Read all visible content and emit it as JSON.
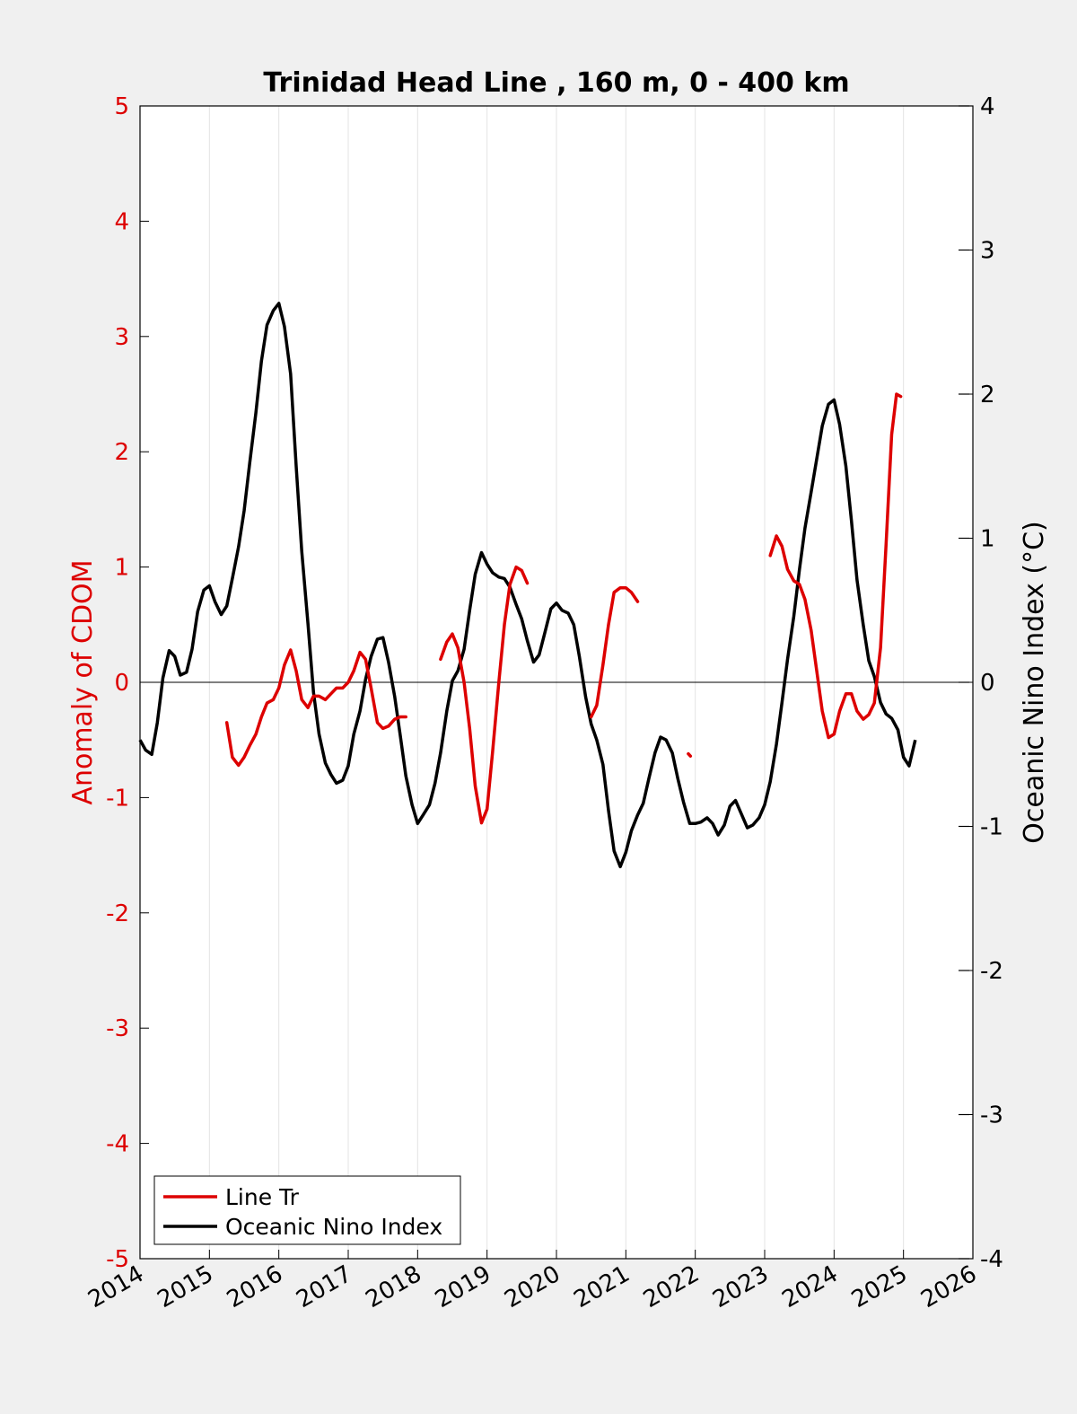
{
  "chart_data": {
    "type": "line",
    "title": "Trinidad Head Line , 160 m, 0 - 400 km",
    "ylabel_left": "Anomaly of CDOM",
    "ylabel_right": "Oceanic Nino Index (°C)",
    "xlabel": "",
    "xlim": [
      2014,
      2026
    ],
    "ylim_left": [
      -5,
      5
    ],
    "ylim_right": [
      -4,
      4
    ],
    "x_ticks": [
      2014,
      2015,
      2016,
      2017,
      2018,
      2019,
      2020,
      2021,
      2022,
      2023,
      2024,
      2025,
      2026
    ],
    "x_tick_labels": [
      "2014",
      "2015",
      "2016",
      "2017",
      "2018",
      "2019",
      "2020",
      "2021",
      "2022",
      "2023",
      "2024",
      "2025",
      "2026"
    ],
    "y_ticks_left": [
      5,
      4,
      3,
      2,
      1,
      0,
      -1,
      -2,
      -3,
      -4,
      -5
    ],
    "y_tick_labels_left": [
      "5",
      "4",
      "3",
      "2",
      "1",
      "0",
      "-1",
      "-2",
      "-3",
      "-4",
      "-5"
    ],
    "y_ticks_right": [
      4,
      3,
      2,
      1,
      0,
      -1,
      -2,
      -3,
      -4
    ],
    "y_tick_labels_right": [
      "4",
      "3",
      "2",
      "1",
      "0",
      "-1",
      "-2",
      "-3",
      "-4"
    ],
    "grid": "vertical",
    "zero_line": true,
    "legend_position": "bottom-left",
    "legend": [
      "Line Tr",
      "Oceanic Nino Index"
    ],
    "colors": {
      "line_tr": "#dd0000",
      "oni": "#000000",
      "left_axis": "#dd0000",
      "right_axis": "#000000",
      "grid": "#e3e3e3",
      "background": "#f0f0f0",
      "plot_bg": "#ffffff"
    },
    "series": [
      {
        "name": "Line Tr",
        "axis": "left",
        "color": "#dd0000",
        "segments": [
          [
            [
              2015.25,
              -0.35
            ],
            [
              2015.33,
              -0.65
            ],
            [
              2015.42,
              -0.72
            ],
            [
              2015.5,
              -0.65
            ],
            [
              2015.58,
              -0.55
            ],
            [
              2015.67,
              -0.45
            ],
            [
              2015.75,
              -0.3
            ],
            [
              2015.83,
              -0.18
            ],
            [
              2015.92,
              -0.15
            ],
            [
              2016.0,
              -0.05
            ],
            [
              2016.08,
              0.15
            ],
            [
              2016.17,
              0.28
            ],
            [
              2016.25,
              0.1
            ],
            [
              2016.33,
              -0.15
            ],
            [
              2016.42,
              -0.22
            ],
            [
              2016.5,
              -0.12
            ],
            [
              2016.58,
              -0.12
            ],
            [
              2016.67,
              -0.15
            ],
            [
              2016.75,
              -0.1
            ],
            [
              2016.83,
              -0.05
            ],
            [
              2016.92,
              -0.05
            ],
            [
              2017.0,
              0.0
            ],
            [
              2017.08,
              0.1
            ],
            [
              2017.17,
              0.26
            ],
            [
              2017.25,
              0.2
            ],
            [
              2017.33,
              -0.05
            ],
            [
              2017.42,
              -0.35
            ],
            [
              2017.5,
              -0.4
            ],
            [
              2017.58,
              -0.38
            ],
            [
              2017.67,
              -0.32
            ],
            [
              2017.75,
              -0.3
            ],
            [
              2017.83,
              -0.3
            ]
          ],
          [
            [
              2018.33,
              0.2
            ],
            [
              2018.42,
              0.35
            ],
            [
              2018.5,
              0.42
            ],
            [
              2018.58,
              0.3
            ],
            [
              2018.67,
              0.0
            ],
            [
              2018.75,
              -0.4
            ],
            [
              2018.83,
              -0.9
            ],
            [
              2018.92,
              -1.22
            ],
            [
              2019.0,
              -1.1
            ],
            [
              2019.08,
              -0.6
            ],
            [
              2019.17,
              0.0
            ],
            [
              2019.25,
              0.5
            ],
            [
              2019.33,
              0.85
            ],
            [
              2019.42,
              1.0
            ],
            [
              2019.5,
              0.97
            ],
            [
              2019.58,
              0.86
            ]
          ],
          [
            [
              2020.5,
              -0.3
            ],
            [
              2020.58,
              -0.2
            ],
            [
              2020.67,
              0.15
            ],
            [
              2020.75,
              0.5
            ],
            [
              2020.83,
              0.78
            ],
            [
              2020.92,
              0.82
            ],
            [
              2021.0,
              0.82
            ],
            [
              2021.08,
              0.78
            ],
            [
              2021.17,
              0.7
            ]
          ],
          [
            [
              2021.9,
              -0.62
            ],
            [
              2021.93,
              -0.64
            ]
          ],
          [
            [
              2023.08,
              1.1
            ],
            [
              2023.17,
              1.27
            ],
            [
              2023.25,
              1.18
            ],
            [
              2023.33,
              0.98
            ],
            [
              2023.42,
              0.88
            ],
            [
              2023.5,
              0.85
            ],
            [
              2023.58,
              0.72
            ],
            [
              2023.67,
              0.45
            ],
            [
              2023.75,
              0.1
            ],
            [
              2023.83,
              -0.25
            ],
            [
              2023.92,
              -0.48
            ],
            [
              2024.0,
              -0.45
            ],
            [
              2024.08,
              -0.25
            ],
            [
              2024.17,
              -0.1
            ],
            [
              2024.25,
              -0.1
            ],
            [
              2024.33,
              -0.25
            ],
            [
              2024.42,
              -0.32
            ],
            [
              2024.5,
              -0.28
            ],
            [
              2024.58,
              -0.18
            ],
            [
              2024.67,
              0.3
            ],
            [
              2024.75,
              1.2
            ],
            [
              2024.83,
              2.15
            ],
            [
              2024.9,
              2.5
            ],
            [
              2024.96,
              2.48
            ]
          ]
        ]
      },
      {
        "name": "Oceanic Nino Index",
        "axis": "right",
        "color": "#000000",
        "points": [
          [
            2014.0,
            -0.4
          ],
          [
            2014.08,
            -0.47
          ],
          [
            2014.17,
            -0.5
          ],
          [
            2014.25,
            -0.28
          ],
          [
            2014.33,
            0.03
          ],
          [
            2014.42,
            0.22
          ],
          [
            2014.5,
            0.18
          ],
          [
            2014.58,
            0.05
          ],
          [
            2014.67,
            0.07
          ],
          [
            2014.75,
            0.23
          ],
          [
            2014.83,
            0.49
          ],
          [
            2014.92,
            0.64
          ],
          [
            2015.0,
            0.67
          ],
          [
            2015.08,
            0.56
          ],
          [
            2015.17,
            0.47
          ],
          [
            2015.25,
            0.53
          ],
          [
            2015.33,
            0.72
          ],
          [
            2015.42,
            0.94
          ],
          [
            2015.5,
            1.19
          ],
          [
            2015.58,
            1.52
          ],
          [
            2015.67,
            1.87
          ],
          [
            2015.75,
            2.23
          ],
          [
            2015.83,
            2.48
          ],
          [
            2015.92,
            2.58
          ],
          [
            2016.0,
            2.63
          ],
          [
            2016.08,
            2.47
          ],
          [
            2016.17,
            2.14
          ],
          [
            2016.25,
            1.5
          ],
          [
            2016.33,
            0.91
          ],
          [
            2016.42,
            0.41
          ],
          [
            2016.5,
            -0.07
          ],
          [
            2016.58,
            -0.36
          ],
          [
            2016.67,
            -0.56
          ],
          [
            2016.75,
            -0.64
          ],
          [
            2016.83,
            -0.7
          ],
          [
            2016.92,
            -0.68
          ],
          [
            2017.0,
            -0.58
          ],
          [
            2017.08,
            -0.36
          ],
          [
            2017.17,
            -0.2
          ],
          [
            2017.25,
            0.02
          ],
          [
            2017.33,
            0.18
          ],
          [
            2017.42,
            0.3
          ],
          [
            2017.5,
            0.31
          ],
          [
            2017.58,
            0.14
          ],
          [
            2017.67,
            -0.1
          ],
          [
            2017.75,
            -0.37
          ],
          [
            2017.83,
            -0.65
          ],
          [
            2017.92,
            -0.85
          ],
          [
            2018.0,
            -0.98
          ],
          [
            2018.08,
            -0.92
          ],
          [
            2018.17,
            -0.85
          ],
          [
            2018.25,
            -0.7
          ],
          [
            2018.33,
            -0.49
          ],
          [
            2018.42,
            -0.2
          ],
          [
            2018.5,
            0.01
          ],
          [
            2018.58,
            0.08
          ],
          [
            2018.67,
            0.23
          ],
          [
            2018.75,
            0.5
          ],
          [
            2018.83,
            0.75
          ],
          [
            2018.92,
            0.9
          ],
          [
            2019.0,
            0.82
          ],
          [
            2019.08,
            0.76
          ],
          [
            2019.17,
            0.73
          ],
          [
            2019.25,
            0.72
          ],
          [
            2019.33,
            0.66
          ],
          [
            2019.42,
            0.54
          ],
          [
            2019.5,
            0.44
          ],
          [
            2019.58,
            0.29
          ],
          [
            2019.67,
            0.14
          ],
          [
            2019.75,
            0.19
          ],
          [
            2019.83,
            0.34
          ],
          [
            2019.92,
            0.51
          ],
          [
            2020.0,
            0.55
          ],
          [
            2020.08,
            0.5
          ],
          [
            2020.17,
            0.48
          ],
          [
            2020.25,
            0.4
          ],
          [
            2020.33,
            0.18
          ],
          [
            2020.42,
            -0.1
          ],
          [
            2020.5,
            -0.29
          ],
          [
            2020.58,
            -0.4
          ],
          [
            2020.67,
            -0.57
          ],
          [
            2020.75,
            -0.89
          ],
          [
            2020.83,
            -1.17
          ],
          [
            2020.92,
            -1.28
          ],
          [
            2021.0,
            -1.18
          ],
          [
            2021.08,
            -1.03
          ],
          [
            2021.17,
            -0.92
          ],
          [
            2021.25,
            -0.84
          ],
          [
            2021.33,
            -0.67
          ],
          [
            2021.42,
            -0.49
          ],
          [
            2021.5,
            -0.38
          ],
          [
            2021.58,
            -0.4
          ],
          [
            2021.67,
            -0.49
          ],
          [
            2021.75,
            -0.67
          ],
          [
            2021.83,
            -0.83
          ],
          [
            2021.92,
            -0.98
          ],
          [
            2022.0,
            -0.98
          ],
          [
            2022.08,
            -0.97
          ],
          [
            2022.17,
            -0.94
          ],
          [
            2022.25,
            -0.98
          ],
          [
            2022.33,
            -1.06
          ],
          [
            2022.42,
            -0.99
          ],
          [
            2022.5,
            -0.86
          ],
          [
            2022.58,
            -0.82
          ],
          [
            2022.67,
            -0.92
          ],
          [
            2022.75,
            -1.01
          ],
          [
            2022.83,
            -0.99
          ],
          [
            2022.92,
            -0.94
          ],
          [
            2023.0,
            -0.85
          ],
          [
            2023.08,
            -0.69
          ],
          [
            2023.17,
            -0.43
          ],
          [
            2023.25,
            -0.14
          ],
          [
            2023.33,
            0.16
          ],
          [
            2023.42,
            0.46
          ],
          [
            2023.5,
            0.78
          ],
          [
            2023.58,
            1.07
          ],
          [
            2023.67,
            1.32
          ],
          [
            2023.75,
            1.55
          ],
          [
            2023.83,
            1.78
          ],
          [
            2023.92,
            1.93
          ],
          [
            2024.0,
            1.96
          ],
          [
            2024.08,
            1.79
          ],
          [
            2024.17,
            1.5
          ],
          [
            2024.25,
            1.12
          ],
          [
            2024.33,
            0.71
          ],
          [
            2024.42,
            0.4
          ],
          [
            2024.5,
            0.15
          ],
          [
            2024.58,
            0.04
          ],
          [
            2024.67,
            -0.14
          ],
          [
            2024.75,
            -0.22
          ],
          [
            2024.83,
            -0.25
          ],
          [
            2024.92,
            -0.33
          ],
          [
            2025.0,
            -0.52
          ],
          [
            2025.08,
            -0.58
          ],
          [
            2025.17,
            -0.4
          ]
        ]
      }
    ]
  }
}
